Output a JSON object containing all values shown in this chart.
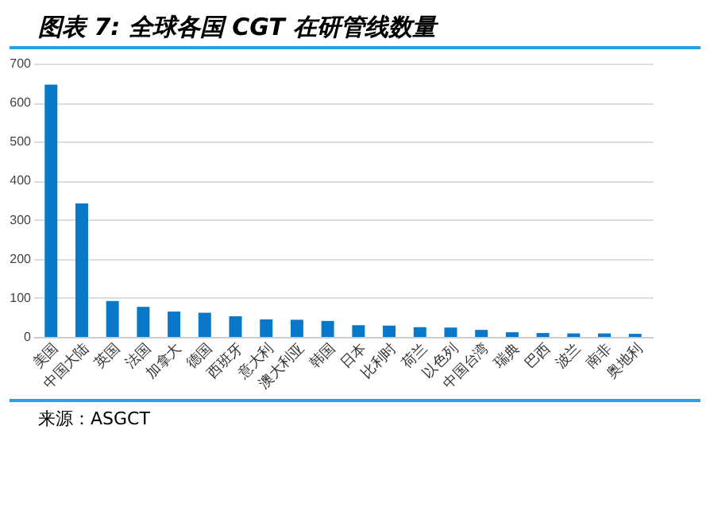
{
  "chart_data": {
    "type": "bar",
    "title": "图表 7: 全球各国 CGT 在研管线数量",
    "categories": [
      "美国",
      "中国大陆",
      "英国",
      "法国",
      "加拿大",
      "德国",
      "西班牙",
      "意大利",
      "澳大利亚",
      "韩国",
      "日本",
      "比利时",
      "荷兰",
      "以色列",
      "中国台湾",
      "瑞典",
      "巴西",
      "波兰",
      "南非",
      "奥地利"
    ],
    "values": [
      646,
      342,
      92,
      77,
      65,
      62,
      53,
      45,
      44,
      41,
      30,
      29,
      25,
      24,
      18,
      12,
      10,
      9,
      9,
      8
    ],
    "color": "#0a78c8",
    "ylim": [
      0,
      700
    ],
    "yticks": [
      0,
      100,
      200,
      300,
      400,
      500,
      600,
      700
    ],
    "grid": "y",
    "annotations": [
      "来源：ASGCT"
    ]
  }
}
